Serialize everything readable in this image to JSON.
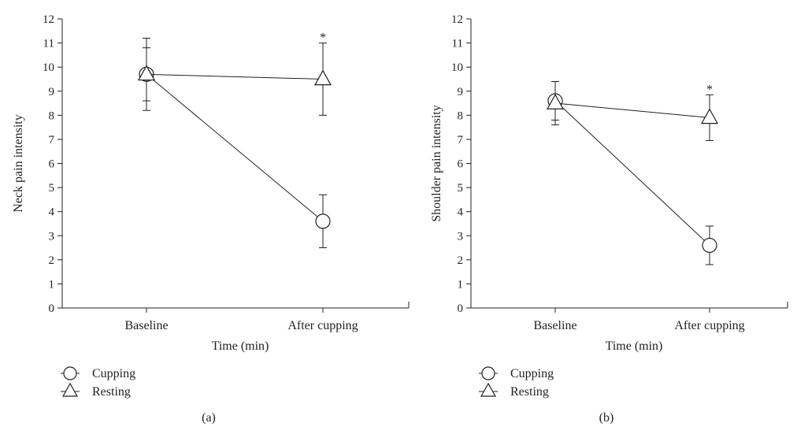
{
  "chart_data": [
    {
      "type": "line",
      "panel_label": "(a)",
      "xlabel": "Time (min)",
      "ylabel": "Neck pain intensity",
      "categories": [
        "Baseline",
        "After cupping"
      ],
      "ylim": [
        0,
        12
      ],
      "yticks": [
        "0",
        "1",
        "2",
        "3",
        "4",
        "5",
        "6",
        "7",
        "8",
        "9",
        "10",
        "11",
        "12"
      ],
      "grid": false,
      "legend_position": "bottom-left",
      "series": [
        {
          "name": "Cupping",
          "marker": "circle",
          "values": [
            9.7,
            3.6
          ],
          "error": [
            1.5,
            1.1
          ]
        },
        {
          "name": "Resting",
          "marker": "triangle",
          "values": [
            9.7,
            9.5
          ],
          "error": [
            1.1,
            1.5
          ]
        }
      ],
      "annotations": [
        {
          "text": "*",
          "category": "After cupping"
        }
      ]
    },
    {
      "type": "line",
      "panel_label": "(b)",
      "xlabel": "Time (min)",
      "ylabel": "Shoulder pain intensity",
      "categories": [
        "Baseline",
        "After cupping"
      ],
      "ylim": [
        0,
        12
      ],
      "yticks": [
        "0",
        "1",
        "2",
        "3",
        "4",
        "5",
        "6",
        "7",
        "8",
        "9",
        "10",
        "11",
        "12"
      ],
      "grid": false,
      "legend_position": "bottom-left",
      "series": [
        {
          "name": "Cupping",
          "marker": "circle",
          "values": [
            8.6,
            2.6
          ],
          "error": [
            0.8,
            0.8
          ]
        },
        {
          "name": "Resting",
          "marker": "triangle",
          "values": [
            8.5,
            7.9
          ],
          "error": [
            0.9,
            0.95
          ]
        }
      ],
      "annotations": [
        {
          "text": "*",
          "category": "After cupping"
        }
      ]
    }
  ]
}
